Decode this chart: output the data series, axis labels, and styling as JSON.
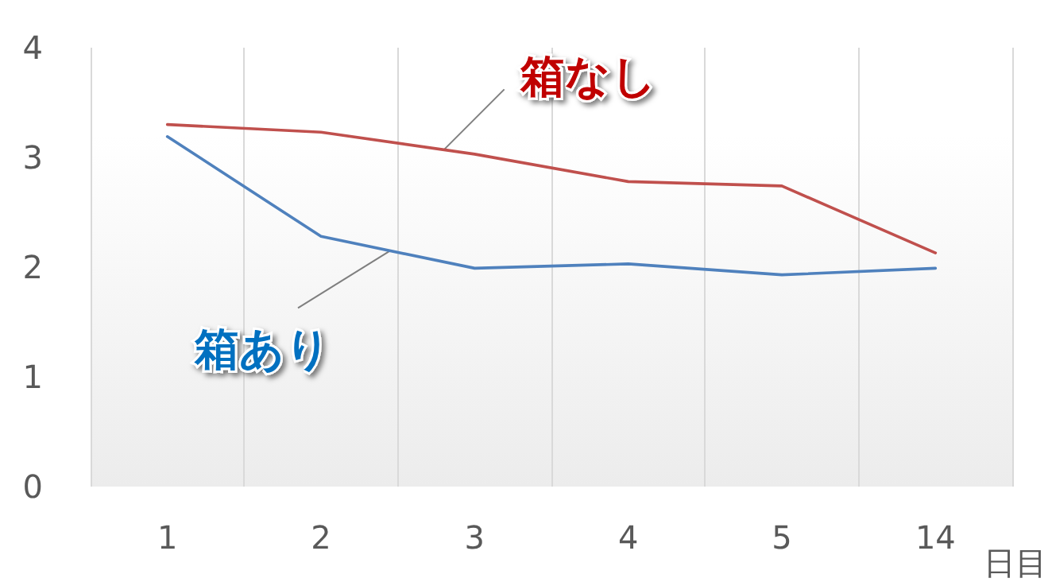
{
  "chart_data": {
    "type": "line",
    "categories": [
      "1",
      "2",
      "3",
      "4",
      "5",
      "14"
    ],
    "xlabel": "日目",
    "ylim": [
      0,
      4
    ],
    "yticks": [
      0,
      1,
      2,
      3,
      4
    ],
    "grid": "x",
    "legend": false,
    "marker": "none",
    "line_style": "solid",
    "series": [
      {
        "name": "箱なし",
        "color": "#c0504d",
        "values": [
          3.3,
          3.23,
          3.03,
          2.78,
          2.74,
          2.13
        ]
      },
      {
        "name": "箱あり",
        "color": "#4f81bd",
        "values": [
          3.19,
          2.28,
          1.99,
          2.03,
          1.93,
          1.99
        ]
      }
    ]
  }
}
